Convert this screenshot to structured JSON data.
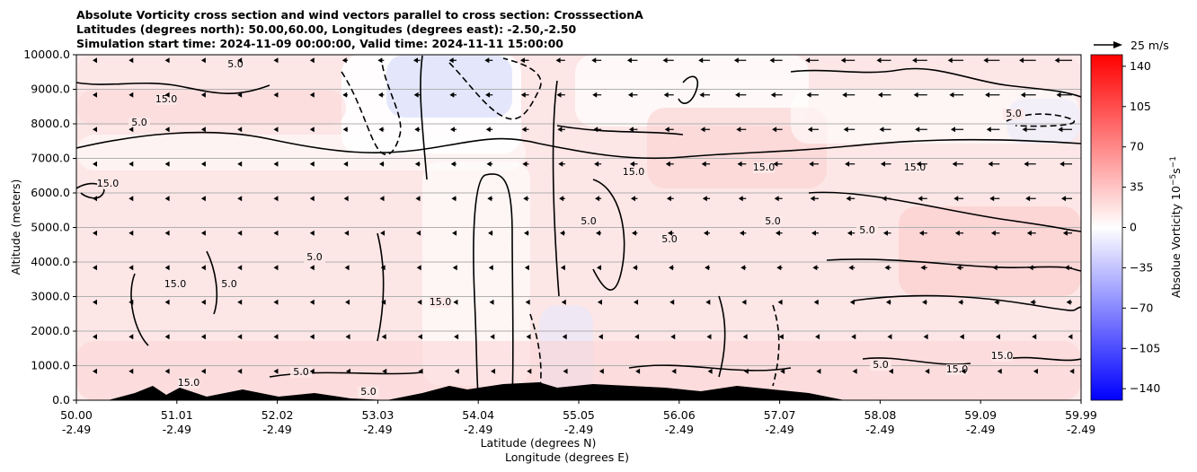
{
  "chart_data": {
    "type": "heatmap",
    "title_lines": [
      "Absolute Vorticity cross section and wind vectors parallel to cross section: CrosssectionA",
      "Latitudes (degrees north): 50.00,60.00, Longitudes (degrees east): -2.50,-2.50",
      "Simulation start time: 2024-11-09 00:00:00, Valid time: 2024-11-11 15:00:00"
    ],
    "ylabel": "Altitude (meters)",
    "xlabel_lines": [
      "Latitude (degrees N)",
      "Longitude (degrees E)"
    ],
    "ylim": [
      0,
      10000
    ],
    "y_ticks": [
      "0.0",
      "1000.0",
      "2000.0",
      "3000.0",
      "4000.0",
      "5000.0",
      "6000.0",
      "7000.0",
      "8000.0",
      "9000.0",
      "10000.0"
    ],
    "x_ticks": [
      {
        "lat": "50.00",
        "lon": "-2.49"
      },
      {
        "lat": "51.01",
        "lon": "-2.49"
      },
      {
        "lat": "52.02",
        "lon": "-2.49"
      },
      {
        "lat": "53.03",
        "lon": "-2.49"
      },
      {
        "lat": "54.04",
        "lon": "-2.49"
      },
      {
        "lat": "55.05",
        "lon": "-2.49"
      },
      {
        "lat": "56.06",
        "lon": "-2.49"
      },
      {
        "lat": "57.07",
        "lon": "-2.49"
      },
      {
        "lat": "58.08",
        "lon": "-2.49"
      },
      {
        "lat": "59.09",
        "lon": "-2.49"
      },
      {
        "lat": "59.99",
        "lon": "-2.49"
      }
    ],
    "colorbar": {
      "label": "Absolue Vorticity 10",
      "label_exp": "−5",
      "label_unit": "s",
      "label_unit_exp": "−1",
      "ticks": [
        "−140",
        "−105",
        "−70",
        "−35",
        "0",
        "35",
        "70",
        "105",
        "140"
      ],
      "range": [
        -150,
        150
      ],
      "colors": {
        "neg": "#0000ff",
        "zero": "#ffffff",
        "pos": "#ff0000"
      }
    },
    "quiver_key": {
      "label": "25 m/s",
      "speed": 25
    },
    "contour_labels": [
      "15.0",
      "5.0",
      "5.0",
      "15.0",
      "15.0",
      "5.0",
      "5.0",
      "15.0",
      "5.0",
      "15.0",
      "5.0",
      "15.0",
      "5.0",
      "5.0",
      "15.0",
      "5.0",
      "15.0",
      "5.0",
      "15.0",
      "5.0",
      "5.0",
      "15.0"
    ]
  }
}
